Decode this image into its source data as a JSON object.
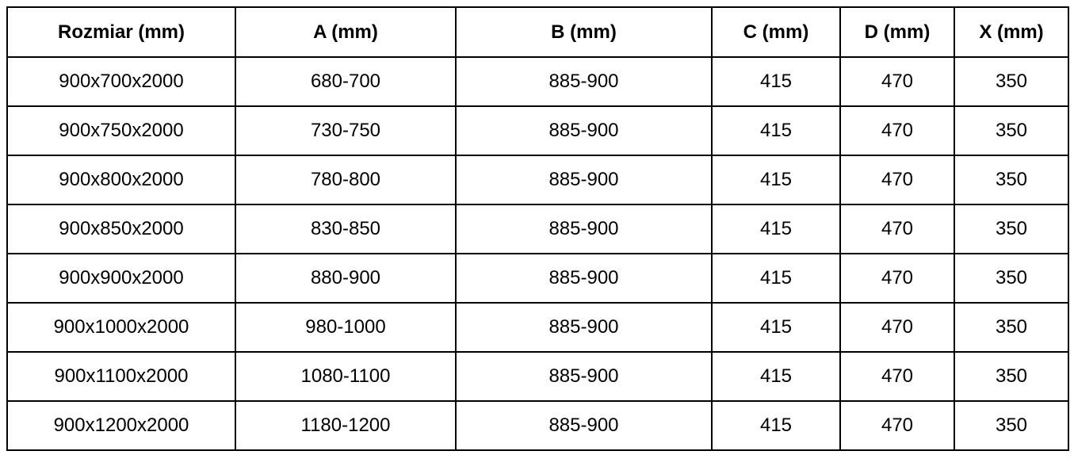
{
  "table": {
    "headers": [
      "Rozmiar (mm)",
      "A (mm)",
      "B (mm)",
      "C (mm)",
      "D (mm)",
      "X (mm)"
    ],
    "rows": [
      [
        "900x700x2000",
        "680-700",
        "885-900",
        "415",
        "470",
        "350"
      ],
      [
        "900x750x2000",
        "730-750",
        "885-900",
        "415",
        "470",
        "350"
      ],
      [
        "900x800x2000",
        "780-800",
        "885-900",
        "415",
        "470",
        "350"
      ],
      [
        "900x850x2000",
        "830-850",
        "885-900",
        "415",
        "470",
        "350"
      ],
      [
        "900x900x2000",
        "880-900",
        "885-900",
        "415",
        "470",
        "350"
      ],
      [
        "900x1000x2000",
        "980-1000",
        "885-900",
        "415",
        "470",
        "350"
      ],
      [
        "900x1100x2000",
        "1080-1100",
        "885-900",
        "415",
        "470",
        "350"
      ],
      [
        "900x1200x2000",
        "1180-1200",
        "885-900",
        "415",
        "470",
        "350"
      ]
    ]
  }
}
